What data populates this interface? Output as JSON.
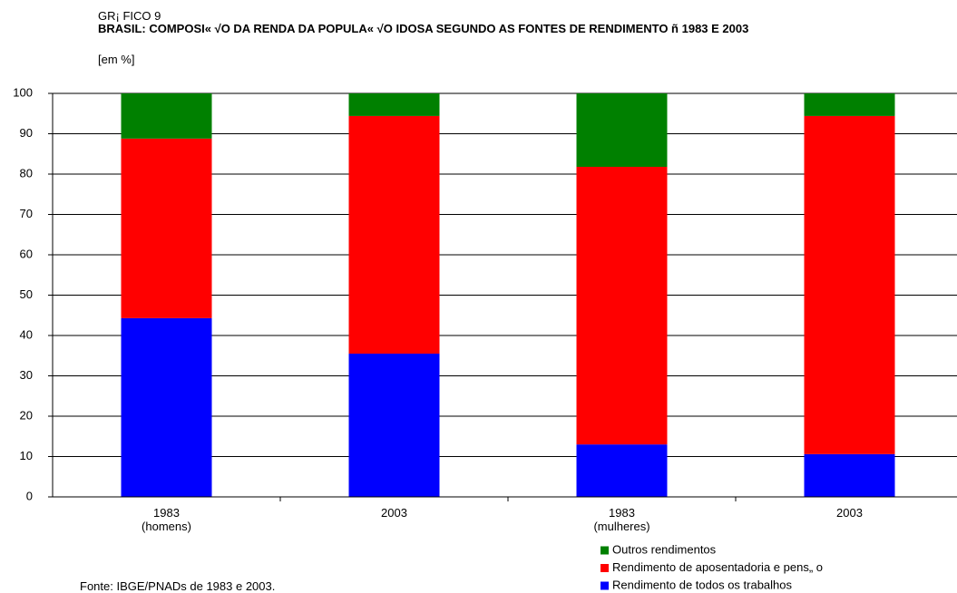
{
  "chart_data": {
    "type": "stacked_bar",
    "pretitle": "GR¡ FICO 9",
    "title": "BRASIL: COMPOSI« √O DA RENDA DA POPULA« √O IDOSA SEGUNDO AS FONTES DE RENDIMENTO ñ 1983 E 2003",
    "subtitle": "[em %]",
    "source": "Fonte: IBGE/PNADs de 1983 e 2003.",
    "categories": [
      "1983\n(homens)",
      "2003",
      "1983\n(mulheres)",
      "2003"
    ],
    "series": [
      {
        "name": "Rendimento de todos os trabalhos",
        "color": "#0000ff",
        "values": [
          44.3,
          35.5,
          13.0,
          10.6
        ]
      },
      {
        "name": "Rendimento de aposentadoria e pens„ o",
        "color": "#ff0000",
        "values": [
          44.5,
          58.9,
          68.8,
          83.8
        ]
      },
      {
        "name": "Outros rendimentos",
        "color": "#008000",
        "values": [
          11.2,
          5.6,
          18.2,
          5.6
        ]
      }
    ],
    "ylim": [
      0,
      100
    ],
    "yticks": [
      0,
      10,
      20,
      30,
      40,
      50,
      60,
      70,
      80,
      90,
      100
    ],
    "grid": true
  }
}
